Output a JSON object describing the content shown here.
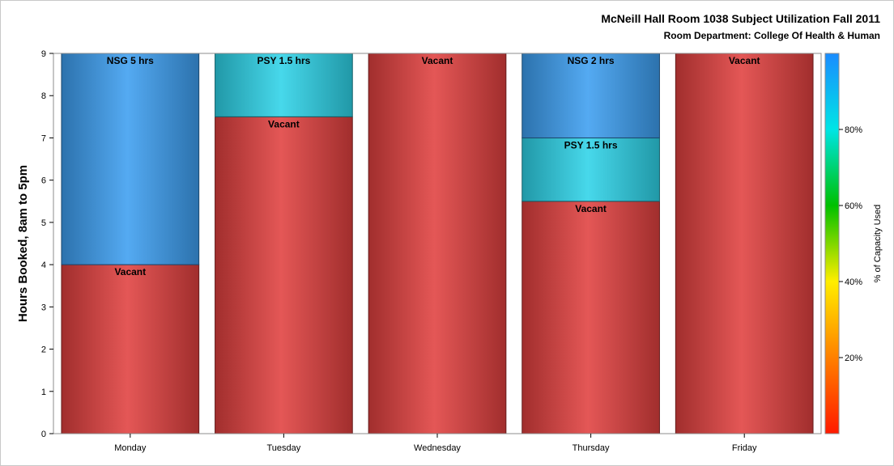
{
  "chart_data": {
    "type": "bar",
    "stacked": true,
    "title": "McNeill Hall Room 1038 Subject Utilization Fall 2011",
    "subtitle": "Room Department:  College Of Health & Human",
    "ylabel": "Hours Booked, 8am to 5pm",
    "ylim": [
      0,
      9
    ],
    "yticks": [
      "0",
      "1",
      "2",
      "3",
      "4",
      "5",
      "6",
      "7",
      "8",
      "9"
    ],
    "categories": [
      "Monday",
      "Tuesday",
      "Wednesday",
      "Thursday",
      "Friday"
    ],
    "bars": [
      {
        "day": "Monday",
        "segments": [
          {
            "label": "Vacant",
            "start": 0,
            "end": 4,
            "color": "#e0403f"
          },
          {
            "label": "NSG 5 hrs",
            "start": 4,
            "end": 9,
            "color": "#3d9ef0"
          }
        ]
      },
      {
        "day": "Tuesday",
        "segments": [
          {
            "label": "Vacant",
            "start": 0,
            "end": 7.5,
            "color": "#e0403f"
          },
          {
            "label": "PSY 1.5 hrs",
            "start": 7.5,
            "end": 9,
            "color": "#2ed3e8"
          }
        ]
      },
      {
        "day": "Wednesday",
        "segments": [
          {
            "label": "Vacant",
            "start": 0,
            "end": 9,
            "color": "#e0403f"
          }
        ]
      },
      {
        "day": "Thursday",
        "segments": [
          {
            "label": "Vacant",
            "start": 0,
            "end": 5.5,
            "color": "#e0403f"
          },
          {
            "label": "PSY 1.5 hrs",
            "start": 5.5,
            "end": 7,
            "color": "#2ed3e8"
          },
          {
            "label": "NSG 2 hrs",
            "start": 7,
            "end": 9,
            "color": "#3d9ef0"
          }
        ]
      },
      {
        "day": "Friday",
        "segments": [
          {
            "label": "Vacant",
            "start": 0,
            "end": 9,
            "color": "#e0403f"
          }
        ]
      }
    ],
    "colorbar": {
      "label": "% of Capacity Used",
      "ticks": [
        "20%",
        "40%",
        "60%",
        "80%"
      ],
      "tick_values": [
        20,
        40,
        60,
        80
      ],
      "range": [
        0,
        100
      ],
      "colors": [
        "#ff1a00",
        "#ff8000",
        "#ffee00",
        "#00c000",
        "#00e5e5",
        "#1a8cff"
      ]
    },
    "grid": false,
    "legend": "colorbar right"
  }
}
